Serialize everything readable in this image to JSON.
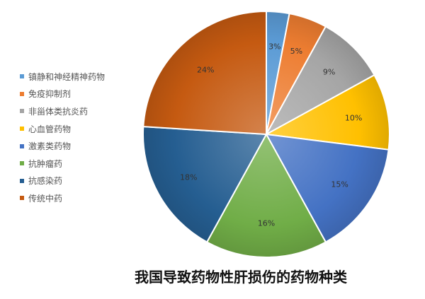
{
  "chart_data": {
    "type": "pie",
    "title": "我国导致药物性肝损伤的药物种类",
    "legend_position": "left",
    "slices": [
      {
        "label": "镇静和神经精神药物",
        "value": 3,
        "display": "3%",
        "color": "#5B9BD5"
      },
      {
        "label": "免疫抑制剂",
        "value": 5,
        "display": "5%",
        "color": "#ED7D31"
      },
      {
        "label": "非甾体类抗炎药",
        "value": 9,
        "display": "9%",
        "color": "#A5A5A5"
      },
      {
        "label": "心血管药物",
        "value": 10,
        "display": "10%",
        "color": "#FFC000"
      },
      {
        "label": "激素类药物",
        "value": 15,
        "display": "15%",
        "color": "#4472C4"
      },
      {
        "label": "抗肿瘤药",
        "value": 16,
        "display": "16%",
        "color": "#70AD47"
      },
      {
        "label": "抗感染药",
        "value": 18,
        "display": "18%",
        "color": "#255E91"
      },
      {
        "label": "传统中药",
        "value": 24,
        "display": "24%",
        "color": "#C55A11"
      }
    ]
  }
}
